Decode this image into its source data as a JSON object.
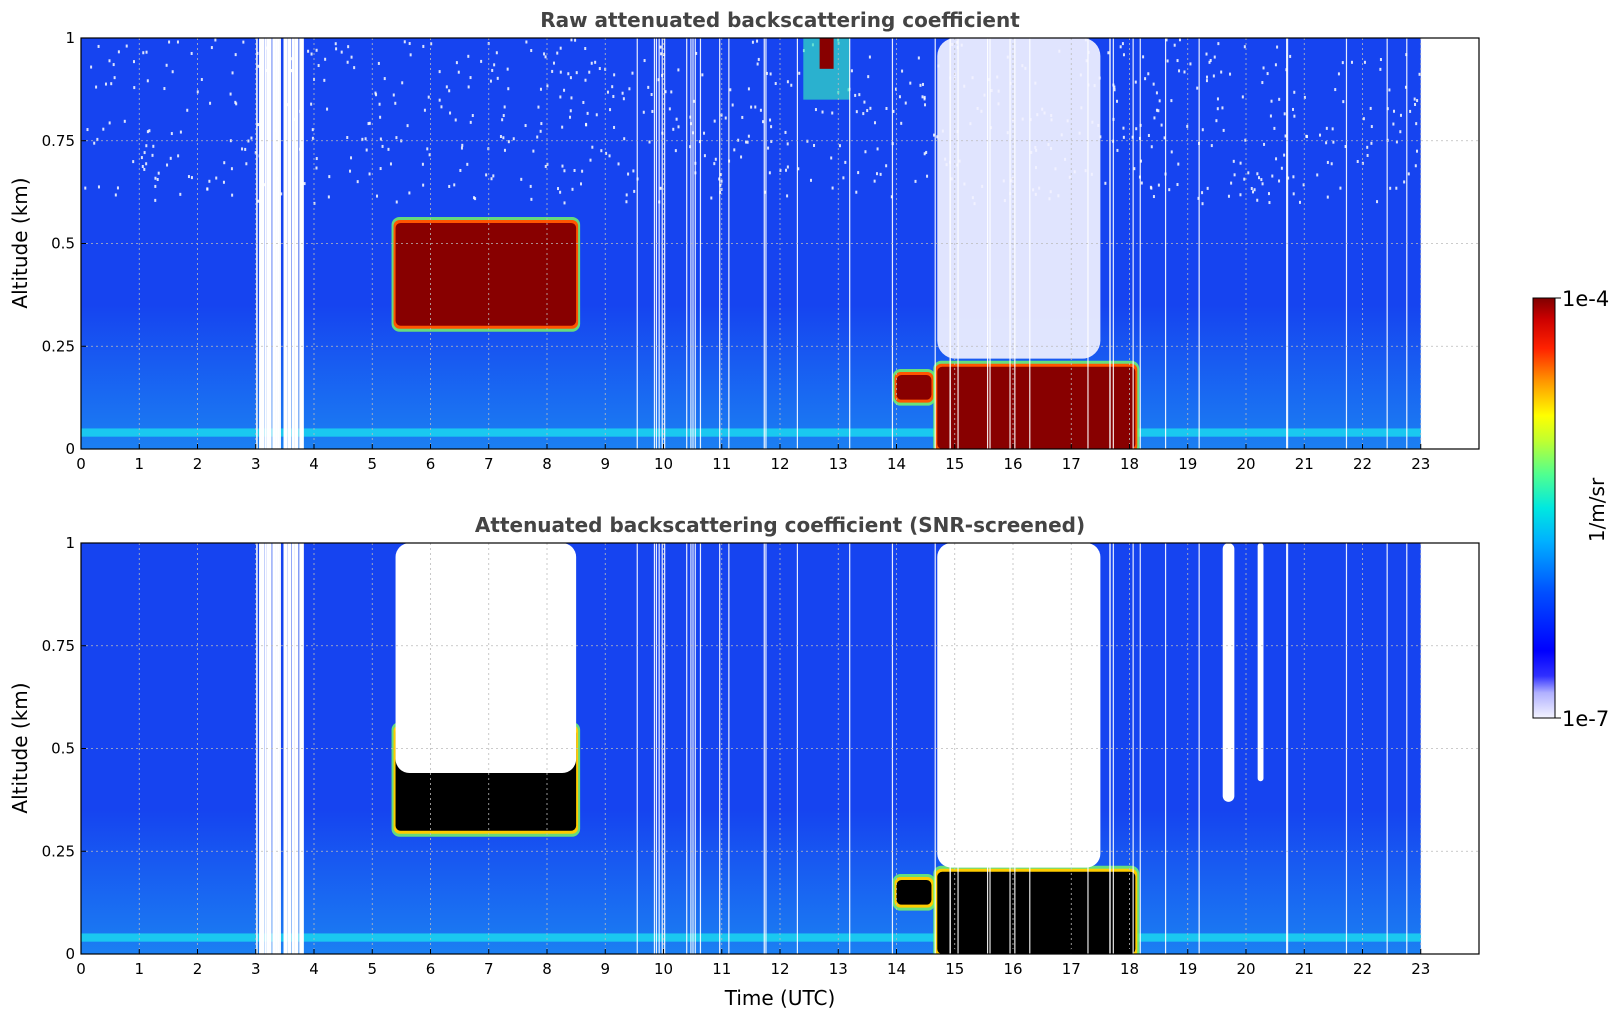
{
  "chart_data": [
    {
      "type": "heatmap",
      "title": "Raw attenuated backscattering coefficient",
      "xlabel": "",
      "ylabel": "Altitude (km)",
      "xlim": [
        0,
        24
      ],
      "ylim": [
        0,
        1
      ],
      "x_ticks": [
        "0",
        "1",
        "2",
        "3",
        "4",
        "5",
        "6",
        "7",
        "8",
        "9",
        "10",
        "11",
        "12",
        "13",
        "14",
        "15",
        "16",
        "17",
        "18",
        "19",
        "20",
        "21",
        "22",
        "23"
      ],
      "y_ticks": [
        "0",
        "0.25",
        "0.5",
        "0.75",
        "1"
      ],
      "grid": true,
      "data_end_hour": 23.0,
      "background_level": "1e-6 to 1e-5 (blue)",
      "features": [
        {
          "kind": "cloud_layer",
          "hours": [
            5.4,
            8.5
          ],
          "altitude_km": [
            0.3,
            0.55
          ],
          "level": "~1e-4 (dark red)"
        },
        {
          "kind": "cloud_layer",
          "hours": [
            14.0,
            14.6
          ],
          "altitude_km": [
            0.12,
            0.18
          ],
          "level": "~1e-4"
        },
        {
          "kind": "cloud_layer",
          "hours": [
            14.7,
            18.1
          ],
          "altitude_km": [
            0.0,
            0.2
          ],
          "level": "~1e-4 (descending base)"
        },
        {
          "kind": "cloud_top",
          "hours": [
            12.4,
            13.2
          ],
          "altitude_km": [
            0.85,
            1.0
          ],
          "level": "~1e-4"
        },
        {
          "kind": "noise_region",
          "hours": [
            14.7,
            17.5
          ],
          "altitude_km": [
            0.22,
            1.0
          ],
          "level": "low / noisy (white)"
        },
        {
          "kind": "aerosol_near_surface",
          "hours": [
            0,
            23
          ],
          "altitude_km": [
            0.0,
            0.05
          ],
          "level": "~1e-5 (cyan)"
        }
      ]
    },
    {
      "type": "heatmap",
      "title": "Attenuated backscattering coefficient (SNR-screened)",
      "xlabel": "Time (UTC)",
      "ylabel": "Altitude (km)",
      "xlim": [
        0,
        24
      ],
      "ylim": [
        0,
        1
      ],
      "x_ticks": [
        "0",
        "1",
        "2",
        "3",
        "4",
        "5",
        "6",
        "7",
        "8",
        "9",
        "10",
        "11",
        "12",
        "13",
        "14",
        "15",
        "16",
        "17",
        "18",
        "19",
        "20",
        "21",
        "22",
        "23"
      ],
      "y_ticks": [
        "0",
        "0.25",
        "0.5",
        "0.75",
        "1"
      ],
      "grid": true,
      "data_end_hour": 23.0,
      "features": [
        {
          "kind": "cloud_layer",
          "hours": [
            5.4,
            8.5
          ],
          "altitude_km": [
            0.3,
            0.55
          ],
          "level": "saturated (black)"
        },
        {
          "kind": "cloud_layer",
          "hours": [
            14.0,
            14.6
          ],
          "altitude_km": [
            0.12,
            0.18
          ],
          "level": "saturated (black)"
        },
        {
          "kind": "cloud_layer",
          "hours": [
            14.7,
            18.1
          ],
          "altitude_km": [
            0.0,
            0.2
          ],
          "level": "saturated (black)"
        },
        {
          "kind": "screened_out",
          "hours": [
            5.4,
            8.5
          ],
          "altitude_km": [
            0.45,
            1.0
          ]
        },
        {
          "kind": "screened_out",
          "hours": [
            14.7,
            17.5
          ],
          "altitude_km": [
            0.22,
            1.0
          ]
        },
        {
          "kind": "screened_out",
          "hours": [
            19.6,
            19.8
          ],
          "altitude_km": [
            0.38,
            1.0
          ]
        },
        {
          "kind": "screened_out",
          "hours": [
            20.2,
            20.3
          ],
          "altitude_km": [
            0.43,
            1.0
          ]
        }
      ]
    }
  ],
  "colorbar": {
    "label": "1/m/sr",
    "max_label": "1e-4",
    "min_label": "1e-7",
    "scale": "log",
    "colormap": "jet",
    "colors": [
      "#f4f4ff",
      "#ccccff",
      "#7777ff",
      "#0000ff",
      "#0044ff",
      "#0099ff",
      "#00dddd",
      "#33ffaa",
      "#aaff44",
      "#ffff00",
      "#ffaa00",
      "#ff4400",
      "#dd0000",
      "#880000"
    ]
  },
  "colors": {
    "background_blue": "#1644f0",
    "surface_cyan": "#1ac8f0",
    "cloud_red": "#880000",
    "saturated": "#000000"
  }
}
